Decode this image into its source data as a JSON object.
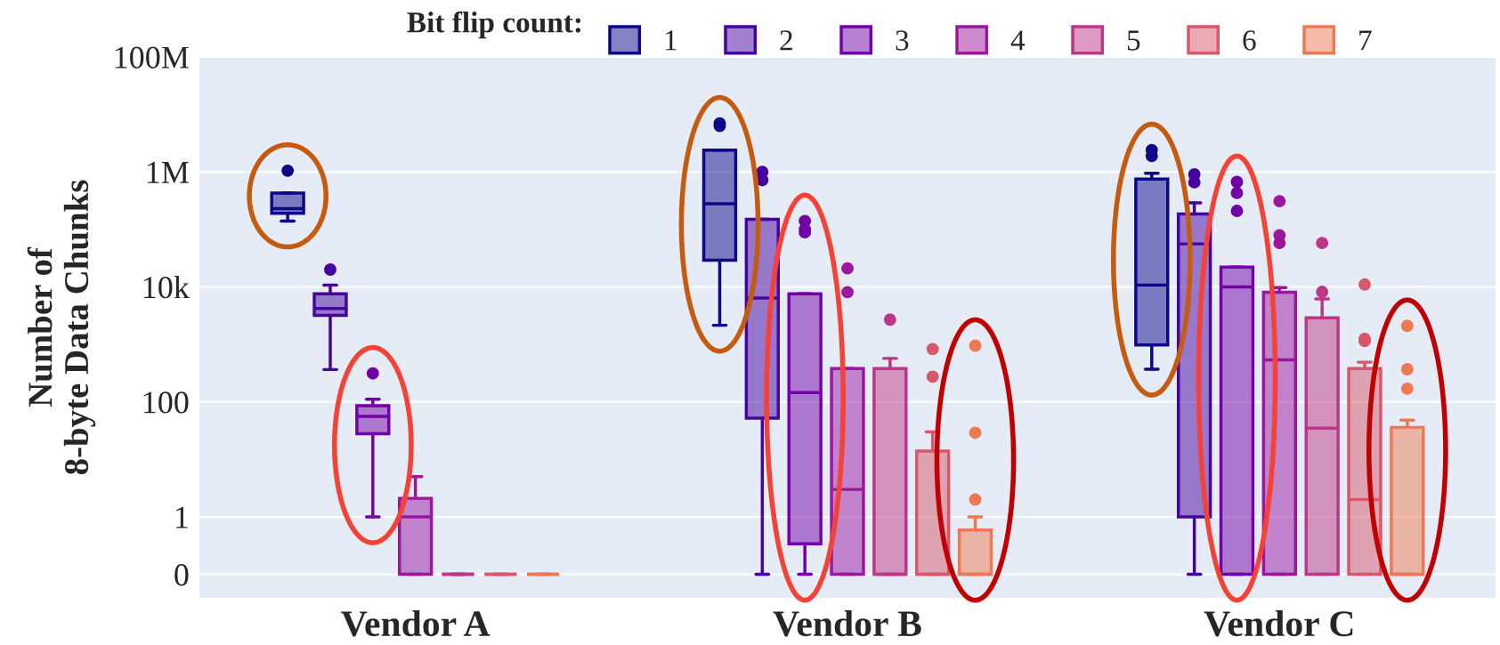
{
  "chart_data": {
    "type": "box",
    "categories": [
      "Vendor A",
      "Vendor B",
      "Vendor C"
    ],
    "ylabel": "Number of\n8-byte Data Chunks",
    "legend_title": "Bit flip count:",
    "legend": "top",
    "grid": "y",
    "log": "y",
    "ylim": [
      0.039,
      100000000
    ],
    "yticks": [
      {
        "value": 0.1,
        "label": "0"
      },
      1,
      100,
      {
        "value": 10000,
        "label": "10k"
      },
      {
        "value": 1000000,
        "label": "1M"
      },
      {
        "value": 100000000,
        "label": "100M"
      }
    ],
    "series": [
      {
        "name": "1",
        "color": "#0d0887",
        "boxes": [
          {
            "low": 140000,
            "q1": 190000,
            "median": 230000,
            "q3": 430000,
            "high": 430000,
            "outliers": [
              1050000
            ]
          },
          {
            "low": 2150,
            "q1": 29000,
            "median": 280000,
            "q3": 2400000,
            "high": 2400000,
            "outliers": [
              7000000,
              6300000
            ]
          },
          {
            "low": 370,
            "q1": 980,
            "median": 10700,
            "q3": 750000,
            "high": 950000,
            "outliers": [
              2400000,
              1900000
            ]
          }
        ]
      },
      {
        "name": "2",
        "color": "#46039f",
        "boxes": [
          {
            "low": 365,
            "q1": 3200,
            "median": 4200,
            "q3": 7600,
            "high": 10700,
            "outliers": [
              20000
            ]
          },
          {
            "low": 0.1,
            "q1": 52,
            "median": 6400,
            "q3": 150000,
            "high": 150000,
            "outliers": [
              1000000,
              720000
            ]
          },
          {
            "low": 0.1,
            "q1": 1,
            "median": 56000,
            "q3": 185000,
            "high": 290000,
            "outliers": [
              910000,
              660000
            ]
          }
        ]
      },
      {
        "name": "3",
        "color": "#7201a8",
        "boxes": [
          {
            "low": 1,
            "q1": 28,
            "median": 56,
            "q3": 86,
            "high": 111,
            "outliers": [
              313
            ]
          },
          {
            "low": 0.1,
            "q1": 0.34,
            "median": 145,
            "q3": 7600,
            "high": 7600,
            "outliers": [
              140000,
              100000,
              89000
            ]
          },
          {
            "low": 0.1,
            "q1": 0.1,
            "median": 10000,
            "q3": 22000,
            "high": 22000,
            "outliers": [
              670000,
              430000,
              210000
            ]
          }
        ]
      },
      {
        "name": "4",
        "color": "#9c179e",
        "boxes": [
          {
            "low": 0.1,
            "q1": 0.1,
            "median": 1,
            "q3": 2.1,
            "high": 5
          },
          {
            "low": 0.1,
            "q1": 0.1,
            "median": 3,
            "q3": 380,
            "high": 380,
            "outliers": [
              21000,
              8100
            ]
          },
          {
            "low": 0.1,
            "q1": 0.1,
            "median": 540,
            "q3": 8100,
            "high": 9700,
            "outliers": [
              310000,
              79000,
              58000
            ]
          }
        ]
      },
      {
        "name": "5",
        "color": "#bd3786",
        "boxes": [
          {
            "low": 0.1,
            "q1": 0.1,
            "median": 0.1,
            "q3": 0.1,
            "high": 0.1
          },
          {
            "low": 0.1,
            "q1": 0.1,
            "median": 0.1,
            "q3": 380,
            "high": 570,
            "outliers": [
              2700
            ]
          },
          {
            "low": 0.1,
            "q1": 0.1,
            "median": 35,
            "q3": 2900,
            "high": 6200,
            "outliers": [
              58000,
              8200
            ]
          }
        ]
      },
      {
        "name": "6",
        "color": "#d8576b",
        "boxes": [
          {
            "low": 0.1,
            "q1": 0.1,
            "median": 0.1,
            "q3": 0.1,
            "high": 0.1
          },
          {
            "low": 0.1,
            "q1": 0.1,
            "median": 0.1,
            "q3": 14,
            "high": 30,
            "outliers": [
              830,
              275
            ]
          },
          {
            "low": 0.1,
            "q1": 0.1,
            "median": 2,
            "q3": 380,
            "high": 490,
            "outliers": [
              11000,
              1250,
              1140
            ]
          }
        ]
      },
      {
        "name": "7",
        "color": "#ed7953",
        "boxes": [
          {
            "low": 0.1,
            "q1": 0.1,
            "median": 0.1,
            "q3": 0.1,
            "high": 0.1
          },
          {
            "low": 0.1,
            "q1": 0.1,
            "median": 0.1,
            "q3": 0.59,
            "high": 1,
            "outliers": [
              950,
              29,
              2
            ]
          },
          {
            "low": 0.1,
            "q1": 0.1,
            "median": 0.1,
            "q3": 36,
            "high": 48,
            "outliers": [
              2100,
              370,
              170
            ]
          }
        ]
      }
    ]
  }
}
